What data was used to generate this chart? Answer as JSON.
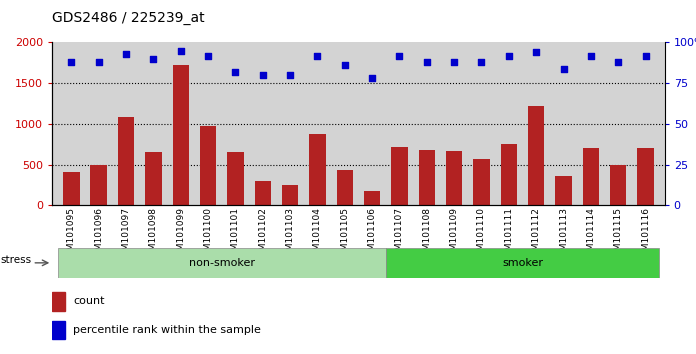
{
  "title": "GDS2486 / 225239_at",
  "categories": [
    "GSM101095",
    "GSM101096",
    "GSM101097",
    "GSM101098",
    "GSM101099",
    "GSM101100",
    "GSM101101",
    "GSM101102",
    "GSM101103",
    "GSM101104",
    "GSM101105",
    "GSM101106",
    "GSM101107",
    "GSM101108",
    "GSM101109",
    "GSM101110",
    "GSM101111",
    "GSM101112",
    "GSM101113",
    "GSM101114",
    "GSM101115",
    "GSM101116"
  ],
  "counts": [
    410,
    490,
    1090,
    650,
    1720,
    970,
    660,
    300,
    250,
    880,
    430,
    170,
    720,
    680,
    670,
    570,
    750,
    1220,
    360,
    700,
    500,
    700
  ],
  "percentile_ranks": [
    88,
    88,
    93,
    90,
    95,
    92,
    82,
    80,
    80,
    92,
    86,
    78,
    92,
    88,
    88,
    88,
    92,
    94,
    84,
    92,
    88,
    92
  ],
  "groups": [
    "non-smoker",
    "non-smoker",
    "non-smoker",
    "non-smoker",
    "non-smoker",
    "non-smoker",
    "non-smoker",
    "non-smoker",
    "non-smoker",
    "non-smoker",
    "non-smoker",
    "non-smoker",
    "smoker",
    "smoker",
    "smoker",
    "smoker",
    "smoker",
    "smoker",
    "smoker",
    "smoker",
    "smoker",
    "smoker"
  ],
  "bar_color": "#b22222",
  "scatter_color": "#0000cc",
  "left_yaxis_color": "#cc0000",
  "right_yaxis_color": "#0000cc",
  "left_ylim": [
    0,
    2000
  ],
  "right_ylim": [
    0,
    100
  ],
  "left_yticks": [
    0,
    500,
    1000,
    1500,
    2000
  ],
  "right_yticks": [
    0,
    25,
    50,
    75,
    100
  ],
  "right_yticklabels": [
    "0",
    "25",
    "50",
    "75",
    "100%"
  ],
  "group_colors": {
    "non-smoker": "#aaddaa",
    "smoker": "#44cc44"
  },
  "stress_label": "stress",
  "legend_count_label": "count",
  "legend_percentile_label": "percentile rank within the sample",
  "bg_color": "#d3d3d3",
  "grid_linestyle": "dotted",
  "non_smoker_count": 12,
  "smoker_count": 10
}
